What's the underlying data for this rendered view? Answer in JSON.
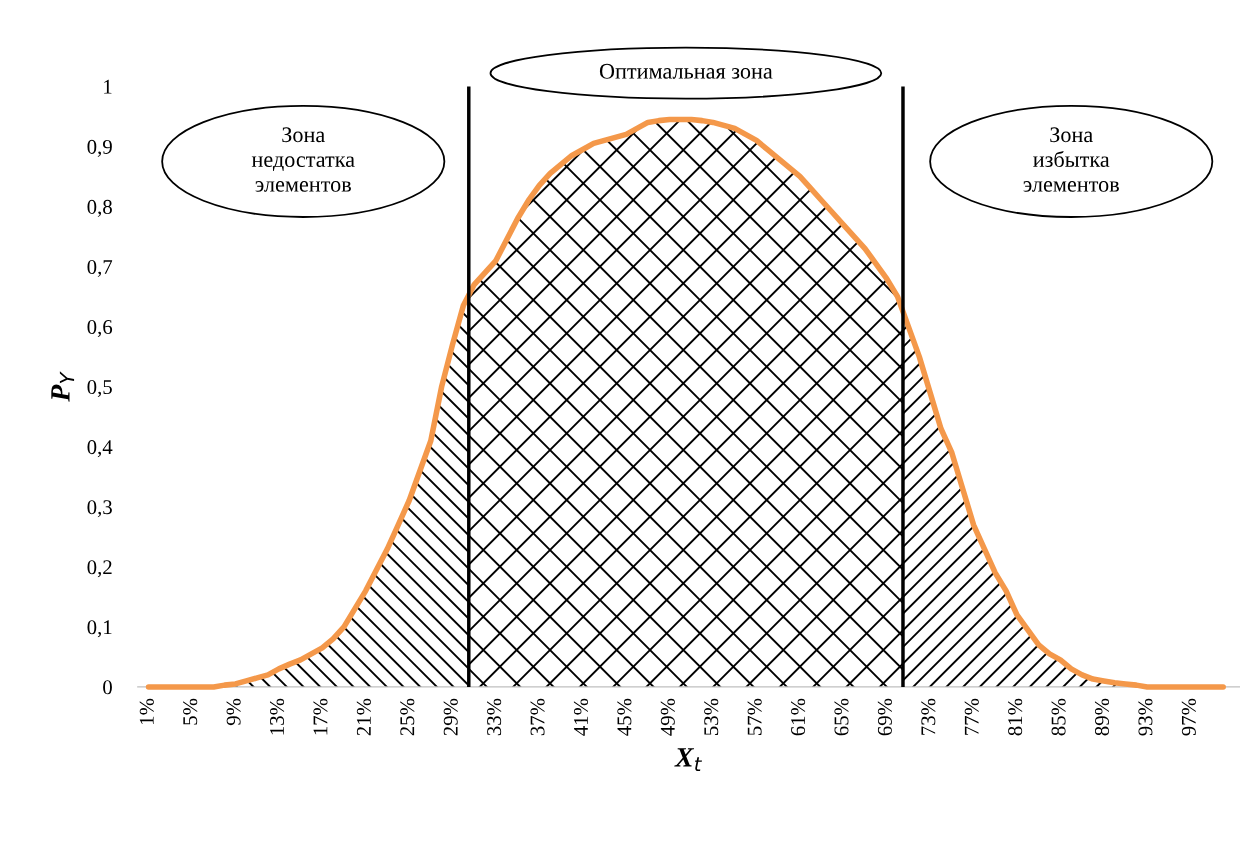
{
  "chart_data": {
    "type": "line",
    "xlabel": "X$_{t}$",
    "ylabel": "P$_{Y}$",
    "x": [
      1,
      2,
      3,
      4,
      5,
      6,
      7,
      8,
      9,
      10,
      11,
      12,
      13,
      14,
      15,
      16,
      17,
      18,
      19,
      20,
      21,
      22,
      23,
      24,
      25,
      26,
      27,
      28,
      29,
      30,
      31,
      32,
      33,
      34,
      35,
      36,
      37,
      38,
      39,
      40,
      41,
      42,
      43,
      44,
      45,
      46,
      47,
      48,
      49,
      50,
      51,
      52,
      53,
      54,
      55,
      56,
      57,
      58,
      59,
      60,
      61,
      62,
      63,
      64,
      65,
      66,
      67,
      68,
      69,
      70,
      71,
      72,
      73,
      74,
      75,
      76,
      77,
      78,
      79,
      80,
      81,
      82,
      83,
      84,
      85,
      86,
      87,
      88,
      89,
      90,
      91,
      92,
      93,
      94,
      95,
      96,
      97,
      98,
      99,
      100
    ],
    "series": [
      {
        "color": "#f4984a",
        "values": [
          0,
          0,
          0,
          0,
          0,
          0,
          0,
          0.003,
          0.005,
          0.01,
          0.015,
          0.02,
          0.03,
          0.038,
          0.045,
          0.055,
          0.065,
          0.08,
          0.1,
          0.13,
          0.16,
          0.195,
          0.23,
          0.27,
          0.31,
          0.36,
          0.41,
          0.5,
          0.57,
          0.635,
          0.67,
          0.69,
          0.71,
          0.745,
          0.78,
          0.81,
          0.835,
          0.855,
          0.87,
          0.885,
          0.895,
          0.905,
          0.91,
          0.915,
          0.92,
          0.93,
          0.94,
          0.943,
          0.945,
          0.945,
          0.945,
          0.943,
          0.94,
          0.935,
          0.93,
          0.92,
          0.91,
          0.895,
          0.88,
          0.865,
          0.85,
          0.83,
          0.81,
          0.79,
          0.77,
          0.75,
          0.73,
          0.705,
          0.68,
          0.65,
          0.6,
          0.55,
          0.49,
          0.43,
          0.39,
          0.33,
          0.27,
          0.23,
          0.19,
          0.16,
          0.12,
          0.095,
          0.07,
          0.055,
          0.045,
          0.03,
          0.02,
          0.013,
          0.01,
          0.007,
          0.005,
          0.003,
          0,
          0,
          0,
          0,
          0,
          0,
          0,
          0
        ]
      }
    ],
    "xlim": [
      0,
      101.5
    ],
    "xticks": [
      {
        "value": 1,
        "label": "1%"
      },
      {
        "value": 5,
        "label": "5%"
      },
      {
        "value": 9,
        "label": "9%"
      },
      {
        "value": 13,
        "label": "13%"
      },
      {
        "value": 17,
        "label": "17%"
      },
      {
        "value": 21,
        "label": "21%"
      },
      {
        "value": 25,
        "label": "25%"
      },
      {
        "value": 29,
        "label": "29%"
      },
      {
        "value": 33,
        "label": "33%"
      },
      {
        "value": 37,
        "label": "37%"
      },
      {
        "value": 41,
        "label": "41%"
      },
      {
        "value": 45,
        "label": "45%"
      },
      {
        "value": 49,
        "label": "49%"
      },
      {
        "value": 53,
        "label": "53%"
      },
      {
        "value": 57,
        "label": "57%"
      },
      {
        "value": 61,
        "label": "61%"
      },
      {
        "value": 65,
        "label": "65%"
      },
      {
        "value": 69,
        "label": "69%"
      },
      {
        "value": 73,
        "label": "73%"
      },
      {
        "value": 77,
        "label": "77%"
      },
      {
        "value": 81,
        "label": "81%"
      },
      {
        "value": 85,
        "label": "85%"
      },
      {
        "value": 89,
        "label": "89%"
      },
      {
        "value": 93,
        "label": "93%"
      },
      {
        "value": 97,
        "label": "97%"
      }
    ],
    "ylim": [
      0,
      1
    ],
    "yticks": [
      0,
      {
        "value": 0.1,
        "label": "0,1"
      },
      {
        "value": 0.2,
        "label": "0,2"
      },
      {
        "value": 0.3,
        "label": "0,3"
      },
      {
        "value": 0.4,
        "label": "0,4"
      },
      {
        "value": 0.5,
        "label": "0,5"
      },
      {
        "value": 0.6,
        "label": "0,6"
      },
      {
        "value": 0.7,
        "label": "0,7"
      },
      {
        "value": 0.8,
        "label": "0,8"
      },
      {
        "value": 0.9,
        "label": "0,9"
      },
      1
    ],
    "annotations": [
      "Зона\nнедостатка\nэлементов",
      "Оптимальная зона",
      "Зона\nизбытка\nэлементов"
    ],
    "ref_lines": [
      {
        "axis": "x",
        "value": 30.5,
        "color": "#000000"
      },
      {
        "axis": "x",
        "value": 70.5,
        "color": "#000000"
      }
    ],
    "grid": false,
    "legend": false,
    "marker": "none",
    "line_style": "solid"
  }
}
